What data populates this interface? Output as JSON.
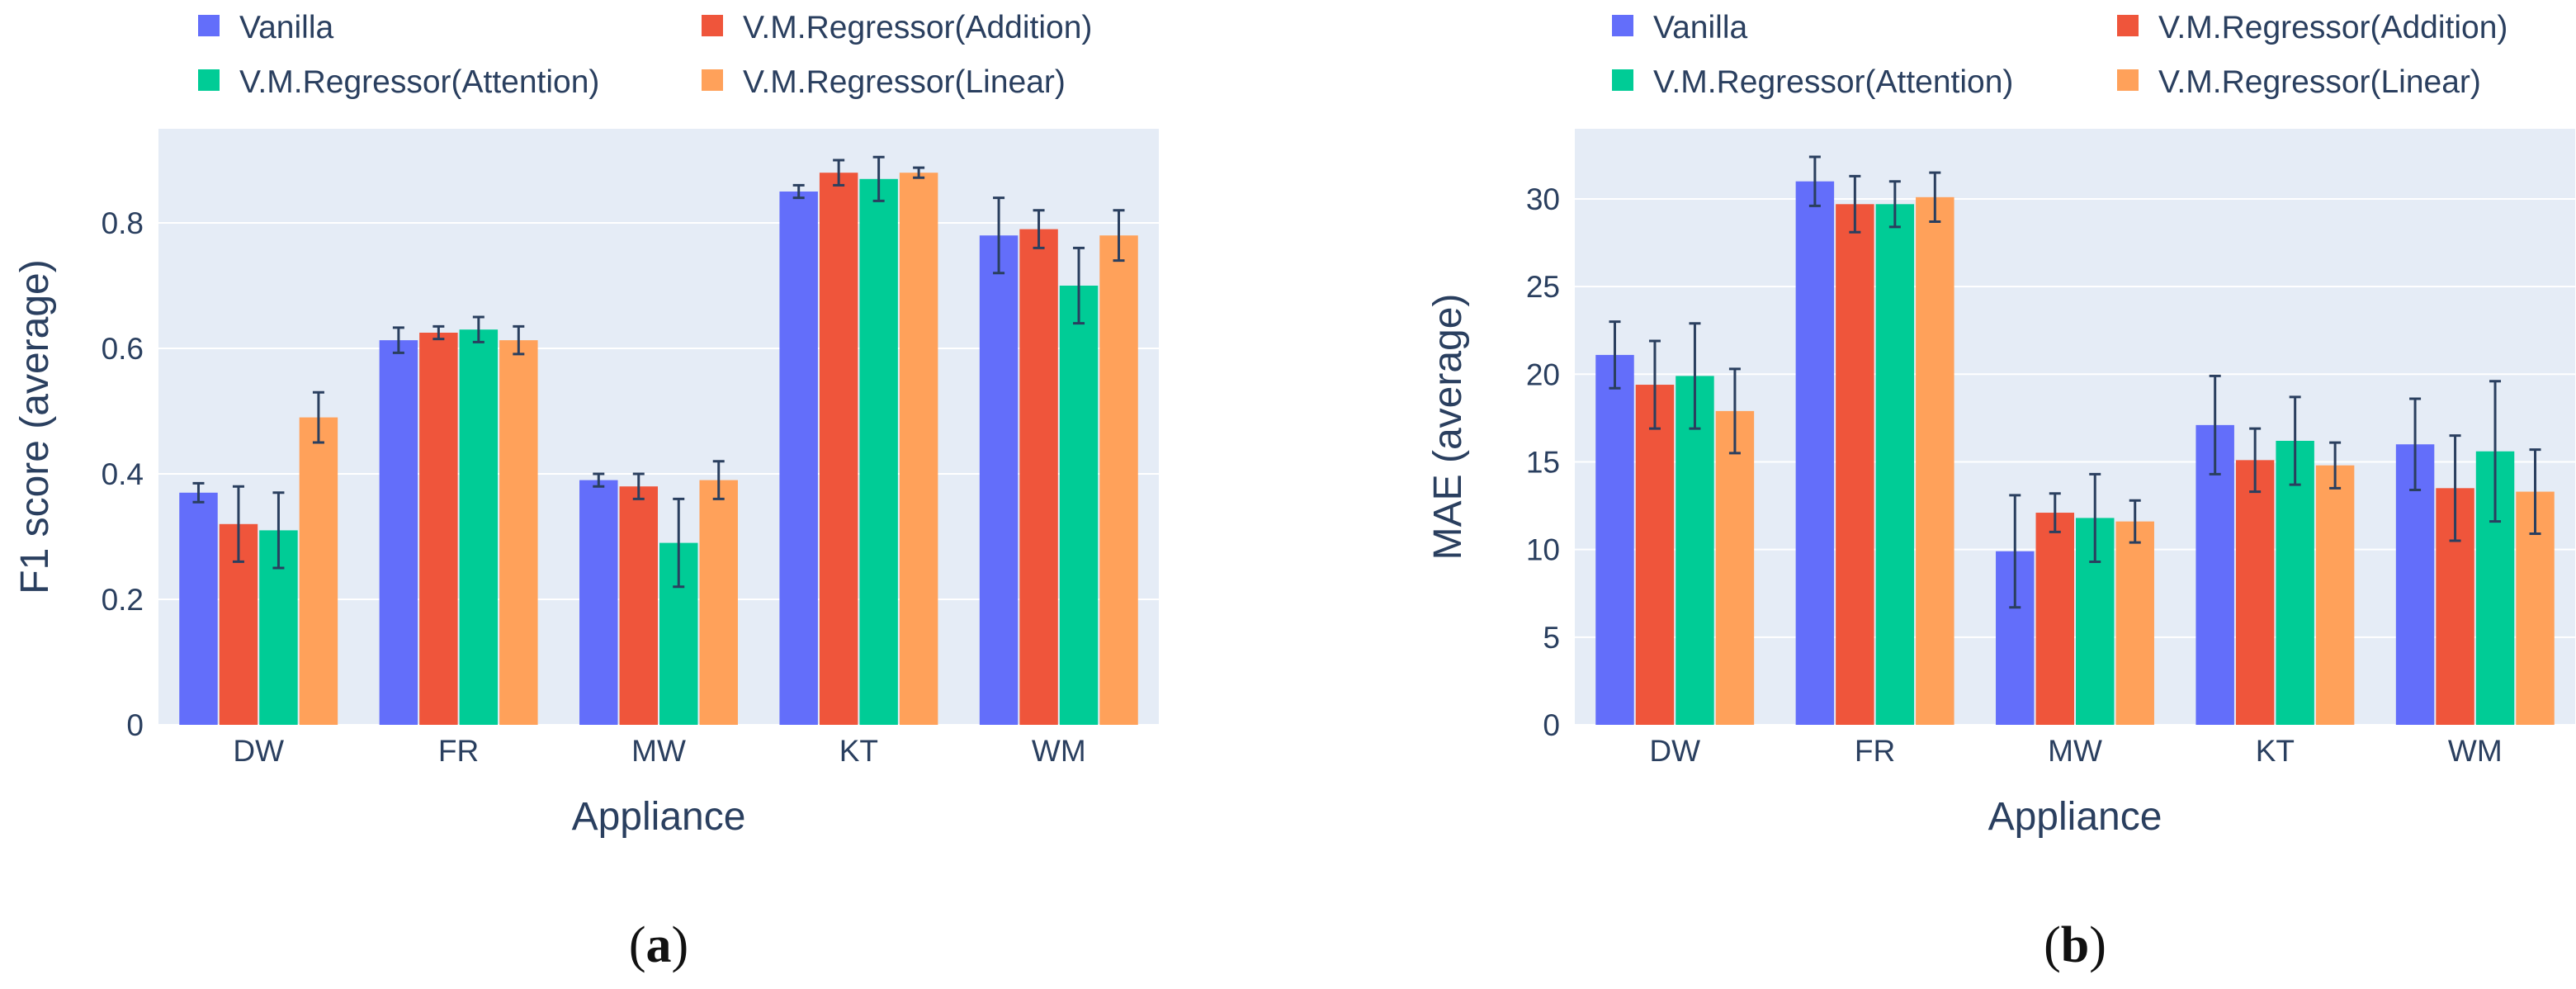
{
  "colors": {
    "plot_bg": "#e5ecf6",
    "grid": "#ffffff",
    "text": "#2a3f5f",
    "error_bar": "#2a3f5f"
  },
  "chart_data": [
    {
      "id": "a",
      "type": "bar",
      "caption": {
        "open": "(",
        "letter": "a",
        "close": ")"
      },
      "xlabel": "Appliance",
      "ylabel": "F1 score (average)",
      "ylim": [
        0,
        0.95
      ],
      "yticks": [
        0,
        0.2,
        0.4,
        0.6,
        0.8
      ],
      "ytick_labels": [
        "0",
        "0.2",
        "0.4",
        "0.6",
        "0.8"
      ],
      "categories": [
        "DW",
        "FR",
        "MW",
        "KT",
        "WM"
      ],
      "legend_position": "top",
      "series": [
        {
          "name": "Vanilla",
          "color": "#636efa",
          "values": [
            0.37,
            0.613,
            0.39,
            0.85,
            0.78
          ],
          "errors": [
            0.015,
            0.02,
            0.01,
            0.01,
            0.06
          ]
        },
        {
          "name": "V.M.Regressor(Addition)",
          "color": "#ef553b",
          "values": [
            0.32,
            0.625,
            0.38,
            0.88,
            0.79
          ],
          "errors": [
            0.06,
            0.01,
            0.02,
            0.02,
            0.03
          ]
        },
        {
          "name": "V.M.Regressor(Attention)",
          "color": "#00cc96",
          "values": [
            0.31,
            0.63,
            0.29,
            0.87,
            0.7
          ],
          "errors": [
            0.06,
            0.02,
            0.07,
            0.035,
            0.06
          ]
        },
        {
          "name": "V.M.Regressor(Linear)",
          "color": "#ffa15a",
          "values": [
            0.49,
            0.613,
            0.39,
            0.88,
            0.78
          ],
          "errors": [
            0.04,
            0.022,
            0.03,
            0.008,
            0.04
          ]
        }
      ]
    },
    {
      "id": "b",
      "type": "bar",
      "caption": {
        "open": "(",
        "letter": "b",
        "close": ")"
      },
      "xlabel": "Appliance",
      "ylabel": "MAE (average)",
      "ylim": [
        0,
        34
      ],
      "yticks": [
        0,
        5,
        10,
        15,
        20,
        25,
        30
      ],
      "ytick_labels": [
        "0",
        "5",
        "10",
        "15",
        "20",
        "25",
        "30"
      ],
      "categories": [
        "DW",
        "FR",
        "MW",
        "KT",
        "WM"
      ],
      "legend_position": "top",
      "series": [
        {
          "name": "Vanilla",
          "color": "#636efa",
          "values": [
            21.1,
            31.0,
            9.9,
            17.1,
            16.0
          ],
          "errors": [
            1.9,
            1.4,
            3.2,
            2.8,
            2.6
          ]
        },
        {
          "name": "V.M.Regressor(Addition)",
          "color": "#ef553b",
          "values": [
            19.4,
            29.7,
            12.1,
            15.1,
            13.5
          ],
          "errors": [
            2.5,
            1.6,
            1.1,
            1.8,
            3.0
          ]
        },
        {
          "name": "V.M.Regressor(Attention)",
          "color": "#00cc96",
          "values": [
            19.9,
            29.7,
            11.8,
            16.2,
            15.6
          ],
          "errors": [
            3.0,
            1.3,
            2.5,
            2.5,
            4.0
          ]
        },
        {
          "name": "V.M.Regressor(Linear)",
          "color": "#ffa15a",
          "values": [
            17.9,
            30.1,
            11.6,
            14.8,
            13.3
          ],
          "errors": [
            2.4,
            1.4,
            1.2,
            1.3,
            2.4
          ]
        }
      ]
    }
  ]
}
